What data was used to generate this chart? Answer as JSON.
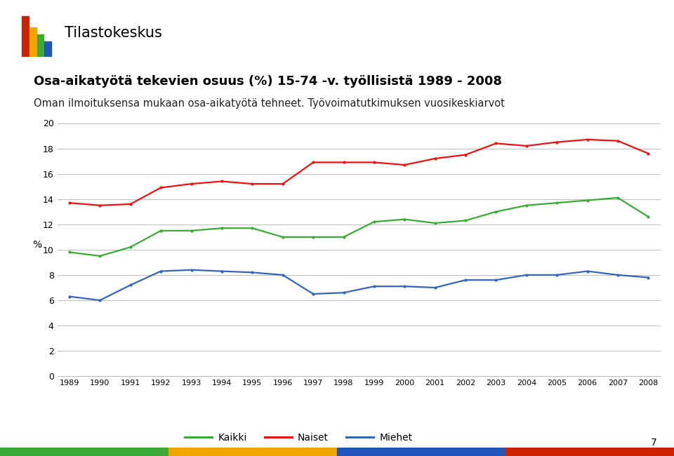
{
  "title_bold": "Osa-aikatyötä tekevien osuus (%) 15-74 -v. työllisistä 1989 - 2008",
  "subtitle": "Oman ilmoituksensa mukaan osa-aikatyötä tehneet. Työvoimatutkimuksen vuosikeskiarvot",
  "logo_text": "Tilastokeskus",
  "years": [
    1989,
    1990,
    1991,
    1992,
    1993,
    1994,
    1995,
    1996,
    1997,
    1998,
    1999,
    2000,
    2001,
    2002,
    2003,
    2004,
    2005,
    2006,
    2007,
    2008
  ],
  "kaikki": [
    9.8,
    9.5,
    10.2,
    11.5,
    11.5,
    11.7,
    11.7,
    11.0,
    11.0,
    11.0,
    12.2,
    12.4,
    12.1,
    12.3,
    13.0,
    13.5,
    13.7,
    13.9,
    14.1,
    12.6
  ],
  "naiset": [
    13.7,
    13.5,
    13.6,
    14.9,
    15.2,
    15.4,
    15.2,
    15.2,
    16.9,
    16.9,
    16.9,
    16.7,
    17.2,
    17.5,
    18.4,
    18.2,
    18.5,
    18.7,
    18.6,
    17.6
  ],
  "miehet": [
    6.3,
    6.0,
    7.2,
    8.3,
    8.4,
    8.3,
    8.2,
    8.0,
    6.5,
    6.6,
    7.1,
    7.1,
    7.0,
    7.6,
    7.6,
    8.0,
    8.0,
    8.3,
    8.0,
    7.8
  ],
  "kaikki_color": "#3aaa35",
  "naiset_color": "#ee1111",
  "miehet_color": "#3366bb",
  "ylabel": "%",
  "ylim": [
    0,
    20
  ],
  "yticks": [
    0,
    2,
    4,
    6,
    8,
    10,
    12,
    14,
    16,
    18,
    20
  ],
  "background_color": "#ffffff",
  "grid_color": "#bbbbbb",
  "legend_labels": [
    "Kaikki",
    "Naiset",
    "Miehet"
  ],
  "page_number": "7",
  "logo_bar_colors": [
    "#cc2200",
    "#f0a500",
    "#3aaa35",
    "#2255bb"
  ],
  "footer_colors": [
    "#3aaa35",
    "#f0a500",
    "#2255bb",
    "#cc2200"
  ]
}
